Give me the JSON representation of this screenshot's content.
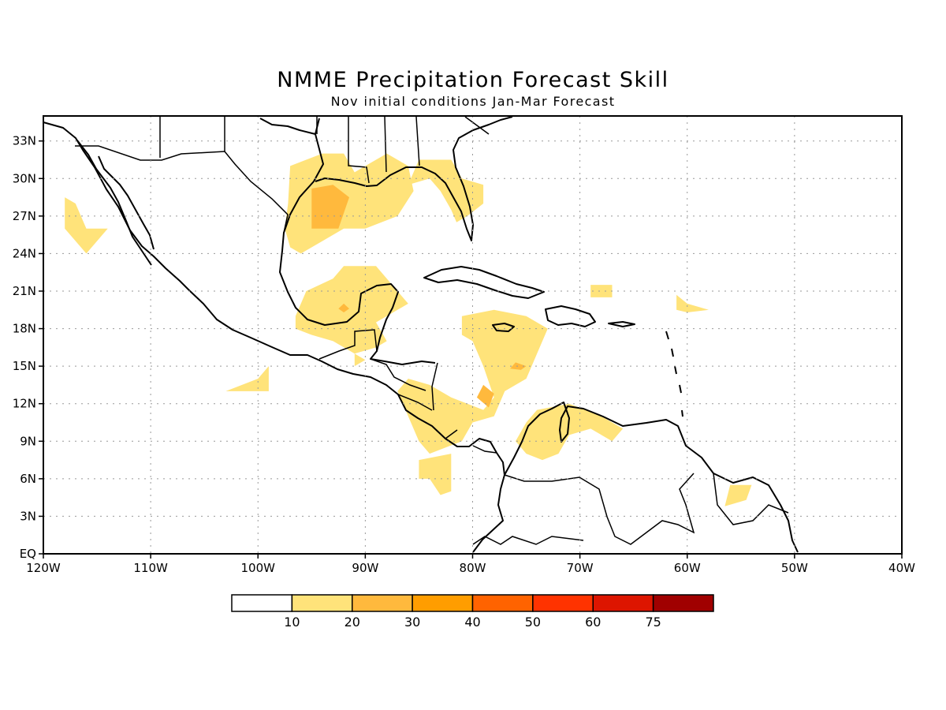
{
  "title": "NMME Precipitation Forecast Skill",
  "subtitle": "Nov initial conditions  Jan-Mar Forecast",
  "map": {
    "lon_range": [
      -120,
      -40
    ],
    "lat_range": [
      0,
      35
    ],
    "lon_ticks": [
      {
        "value": -120,
        "label": "120W"
      },
      {
        "value": -110,
        "label": "110W"
      },
      {
        "value": -100,
        "label": "100W"
      },
      {
        "value": -90,
        "label": "90W"
      },
      {
        "value": -80,
        "label": "80W"
      },
      {
        "value": -70,
        "label": "70W"
      },
      {
        "value": -60,
        "label": "60W"
      },
      {
        "value": -50,
        "label": "50W"
      },
      {
        "value": -40,
        "label": "40W"
      }
    ],
    "lat_ticks": [
      {
        "value": 0,
        "label": "EQ"
      },
      {
        "value": 3,
        "label": "3N"
      },
      {
        "value": 6,
        "label": "6N"
      },
      {
        "value": 9,
        "label": "9N"
      },
      {
        "value": 12,
        "label": "12N"
      },
      {
        "value": 15,
        "label": "15N"
      },
      {
        "value": 18,
        "label": "18N"
      },
      {
        "value": 21,
        "label": "21N"
      },
      {
        "value": 24,
        "label": "24N"
      },
      {
        "value": 27,
        "label": "27N"
      },
      {
        "value": 30,
        "label": "30N"
      },
      {
        "value": 33,
        "label": "33N"
      }
    ],
    "grid": true,
    "colors": {
      "bin_10_20": "#ffe37a",
      "bin_20_30": "#ffb93d"
    }
  },
  "skill_regions": [
    {
      "bin": "10-20",
      "coords": [
        [
          -97.2,
          28
        ],
        [
          -97,
          31
        ],
        [
          -94,
          32
        ],
        [
          -92,
          32
        ],
        [
          -91,
          30.5
        ],
        [
          -90,
          31
        ],
        [
          -88,
          32
        ],
        [
          -86,
          31
        ],
        [
          -85.5,
          29
        ],
        [
          -87,
          27
        ],
        [
          -90,
          26
        ],
        [
          -92,
          26
        ],
        [
          -94,
          25
        ],
        [
          -96,
          24
        ],
        [
          -97,
          24.5
        ],
        [
          -97.5,
          26
        ]
      ]
    },
    {
      "bin": "10-20",
      "coords": [
        [
          -86,
          29.5
        ],
        [
          -85,
          31.5
        ],
        [
          -82,
          31.5
        ],
        [
          -81,
          30
        ],
        [
          -79,
          29.5
        ],
        [
          -79,
          28
        ],
        [
          -80.5,
          27
        ],
        [
          -81.5,
          26.5
        ],
        [
          -82,
          27.5
        ],
        [
          -83,
          29
        ],
        [
          -84,
          30
        ]
      ]
    },
    {
      "bin": "10-20",
      "coords": [
        [
          -118,
          28.5
        ],
        [
          -117,
          28
        ],
        [
          -116,
          26
        ],
        [
          -114,
          26
        ],
        [
          -116,
          24
        ],
        [
          -118,
          26
        ]
      ]
    },
    {
      "bin": "10-20",
      "coords": [
        [
          -96.5,
          19
        ],
        [
          -95.5,
          21
        ],
        [
          -93,
          22
        ],
        [
          -92,
          23
        ],
        [
          -89,
          23
        ],
        [
          -88,
          22
        ],
        [
          -86,
          20
        ],
        [
          -87,
          19.5
        ],
        [
          -89,
          18.5
        ],
        [
          -88,
          17
        ],
        [
          -89,
          16.5
        ],
        [
          -91,
          16
        ],
        [
          -93,
          17
        ],
        [
          -95,
          17.5
        ],
        [
          -96.5,
          18
        ]
      ]
    },
    {
      "bin": "10-20",
      "coords": [
        [
          -91,
          16
        ],
        [
          -90,
          15.5
        ],
        [
          -91,
          15
        ]
      ]
    },
    {
      "bin": "10-20",
      "coords": [
        [
          -103,
          13
        ],
        [
          -100,
          14
        ],
        [
          -99,
          15
        ],
        [
          -99,
          13
        ]
      ]
    },
    {
      "bin": "10-20",
      "coords": [
        [
          -81,
          19
        ],
        [
          -78,
          19.5
        ],
        [
          -75,
          19
        ],
        [
          -73,
          18
        ],
        [
          -74,
          16
        ],
        [
          -75,
          14
        ],
        [
          -77,
          13
        ],
        [
          -78,
          11
        ],
        [
          -80,
          10.5
        ],
        [
          -81,
          9
        ],
        [
          -84,
          8
        ],
        [
          -85,
          9
        ],
        [
          -86,
          11
        ],
        [
          -87,
          13
        ],
        [
          -86,
          14
        ],
        [
          -84,
          13.5
        ],
        [
          -82,
          12.5
        ],
        [
          -79,
          11.5
        ],
        [
          -78,
          12.5
        ],
        [
          -79,
          15
        ],
        [
          -80,
          17
        ],
        [
          -81,
          17.5
        ]
      ]
    },
    {
      "bin": "10-20",
      "coords": [
        [
          -85,
          7.5
        ],
        [
          -82,
          8
        ],
        [
          -82,
          5
        ],
        [
          -83,
          4.7
        ],
        [
          -84,
          6
        ],
        [
          -85,
          6
        ]
      ]
    },
    {
      "bin": "10-20",
      "coords": [
        [
          -74,
          11.5
        ],
        [
          -71,
          12
        ],
        [
          -68,
          11
        ],
        [
          -66,
          10
        ],
        [
          -67,
          9
        ],
        [
          -69,
          10
        ],
        [
          -71,
          9.5
        ],
        [
          -72,
          8
        ],
        [
          -73.5,
          7.5
        ],
        [
          -75,
          8
        ],
        [
          -76,
          9
        ],
        [
          -75,
          10.5
        ]
      ]
    },
    {
      "bin": "10-20",
      "coords": [
        [
          -69,
          21.5
        ],
        [
          -67,
          21.5
        ],
        [
          -67,
          20.5
        ],
        [
          -69,
          20.5
        ]
      ]
    },
    {
      "bin": "10-20",
      "coords": [
        [
          -61,
          20.7
        ],
        [
          -60,
          20
        ],
        [
          -58,
          19.5
        ],
        [
          -60,
          19.3
        ],
        [
          -61,
          19.5
        ]
      ]
    },
    {
      "bin": "10-20",
      "coords": [
        [
          -56,
          5.5
        ],
        [
          -54,
          5.5
        ],
        [
          -54.5,
          4.3
        ],
        [
          -56.5,
          3.8
        ]
      ]
    },
    {
      "bin": "20-30",
      "coords": [
        [
          -95,
          29.2
        ],
        [
          -93,
          29.5
        ],
        [
          -91.5,
          28.5
        ],
        [
          -92.5,
          26
        ],
        [
          -95,
          26
        ]
      ]
    },
    {
      "bin": "20-30",
      "coords": [
        [
          -92,
          20
        ],
        [
          -91.5,
          19.6
        ],
        [
          -92,
          19.3
        ],
        [
          -92.5,
          19.6
        ]
      ]
    },
    {
      "bin": "20-30",
      "coords": [
        [
          -79,
          13.5
        ],
        [
          -78,
          12.8
        ],
        [
          -78.5,
          11.7
        ],
        [
          -79.6,
          12.5
        ]
      ]
    },
    {
      "bin": "20-30",
      "coords": [
        [
          -76,
          15.3
        ],
        [
          -75,
          15
        ],
        [
          -75.5,
          14.7
        ],
        [
          -76.5,
          14.8
        ]
      ]
    }
  ],
  "legend": {
    "bins": [
      {
        "color": "#ffffff"
      },
      {
        "color": "#ffe37a"
      },
      {
        "color": "#ffb93d"
      },
      {
        "color": "#ff9d00"
      },
      {
        "color": "#ff6300"
      },
      {
        "color": "#ff3300"
      },
      {
        "color": "#dd1500"
      },
      {
        "color": "#a00000"
      }
    ],
    "labels": [
      "10",
      "20",
      "30",
      "40",
      "50",
      "60",
      "75"
    ]
  }
}
